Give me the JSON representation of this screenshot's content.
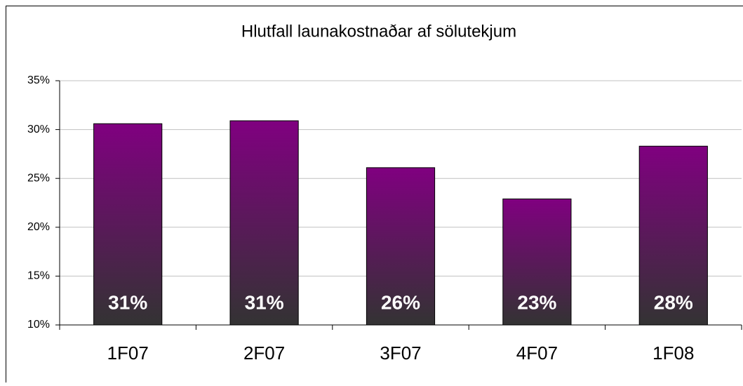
{
  "chart_data": {
    "type": "bar",
    "title": "Hlutfall launakostnaðar af sölutekjum",
    "categories": [
      "1F07",
      "2F07",
      "3F07",
      "4F07",
      "1F08"
    ],
    "values": [
      30.6,
      30.9,
      26.1,
      22.9,
      28.3
    ],
    "value_labels": [
      "31%",
      "31%",
      "26%",
      "23%",
      "28%"
    ],
    "color": "#800080",
    "ylim": [
      10,
      35
    ],
    "yticks": [
      {
        "value": 10,
        "label": "10%"
      },
      {
        "value": 15,
        "label": "15%"
      },
      {
        "value": 20,
        "label": "20%"
      },
      {
        "value": 25,
        "label": "25%"
      },
      {
        "value": 30,
        "label": "30%"
      },
      {
        "value": 35,
        "label": "35%"
      }
    ],
    "grid": true
  }
}
